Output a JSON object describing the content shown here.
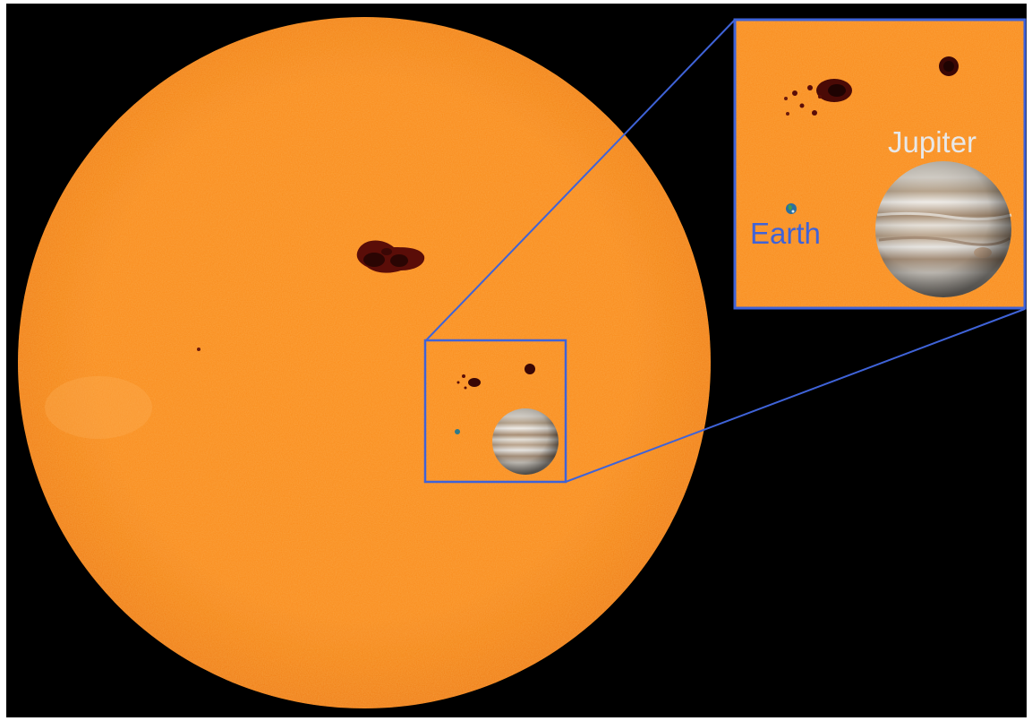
{
  "labels": {
    "earth": "Earth",
    "jupiter": "Jupiter"
  },
  "colors": {
    "sun": "#f78b1c",
    "sunspot": "#4a0a06",
    "inset_border": "#3f63d8",
    "earth_label": "#3f63d8",
    "jupiter_label": "#e8e8e8",
    "background": "#000000"
  },
  "elements": {
    "sun": "sun-disk",
    "earth": "earth-planet",
    "jupiter": "jupiter-planet"
  }
}
